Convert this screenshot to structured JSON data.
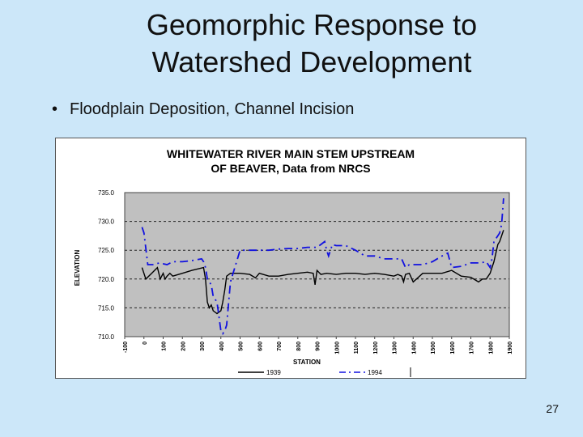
{
  "slide": {
    "title_line1": "Geomorphic Response to",
    "title_line2": "Watershed Development",
    "bullet_symbol": "•",
    "bullet": "Floodplain Deposition, Channel Incision",
    "page_number": "27",
    "background": "#cce7f9"
  },
  "chart_data": {
    "type": "line",
    "title": [
      "WHITEWATER RIVER MAIN STEM UPSTREAM",
      "OF BEAVER,  Data from NRCS"
    ],
    "xlabel": "STATION",
    "ylabel": "ELEVATION",
    "xlim": [
      -100,
      1900
    ],
    "ylim": [
      710,
      735
    ],
    "xticks": [
      -100,
      0,
      100,
      200,
      300,
      400,
      500,
      600,
      700,
      800,
      900,
      1000,
      1100,
      1200,
      1300,
      1400,
      1500,
      1600,
      1700,
      1800,
      1900
    ],
    "yticks": [
      "710.0",
      "715.0",
      "720.0",
      "725.0",
      "730.0",
      "735.0"
    ],
    "grid": "horizontal dashed",
    "plot_background": "#c0c0c0",
    "legend_position": "bottom",
    "series": [
      {
        "name": "1939",
        "style": "solid",
        "color": "#000000",
        "x": [
          -10,
          10,
          40,
          70,
          85,
          100,
          110,
          120,
          135,
          150,
          200,
          250,
          310,
          320,
          330,
          340,
          350,
          360,
          380,
          400,
          410,
          420,
          430,
          450,
          500,
          550,
          580,
          600,
          650,
          700,
          750,
          800,
          850,
          880,
          890,
          900,
          920,
          950,
          1000,
          1050,
          1100,
          1150,
          1200,
          1250,
          1300,
          1320,
          1340,
          1350,
          1360,
          1380,
          1400,
          1450,
          1500,
          1550,
          1600,
          1650,
          1700,
          1740,
          1760,
          1780,
          1800,
          1810,
          1820,
          1830,
          1840,
          1850,
          1855,
          1860,
          1870
        ],
        "y": [
          722,
          720,
          721,
          722,
          720,
          721,
          720,
          720.5,
          721,
          720.5,
          721,
          721.5,
          722,
          720,
          716,
          715,
          715.5,
          714.5,
          714,
          714.5,
          716,
          718,
          720.5,
          721,
          721,
          720.8,
          720.2,
          721,
          720.5,
          720.5,
          720.8,
          721,
          721.2,
          721,
          719,
          721.5,
          720.8,
          721,
          720.8,
          721,
          721,
          720.8,
          721,
          720.8,
          720.5,
          720.8,
          720.5,
          719.5,
          720.8,
          721,
          719.5,
          721,
          721,
          721,
          721.5,
          720.5,
          720.3,
          719.5,
          720,
          720,
          721,
          722,
          723,
          724.5,
          726,
          726.5,
          727,
          727.5,
          728.5
        ]
      },
      {
        "name": "1994",
        "style": "dashed",
        "color": "#1010e0",
        "x": [
          -10,
          0,
          20,
          50,
          80,
          120,
          150,
          200,
          250,
          300,
          310,
          320,
          330,
          350,
          360,
          380,
          400,
          410,
          420,
          430,
          450,
          500,
          550,
          600,
          650,
          700,
          750,
          800,
          850,
          900,
          920,
          940,
          950,
          960,
          980,
          1000,
          1050,
          1100,
          1150,
          1200,
          1250,
          1300,
          1320,
          1340,
          1360,
          1380,
          1400,
          1420,
          1450,
          1500,
          1550,
          1580,
          1600,
          1650,
          1700,
          1750,
          1780,
          1800,
          1810,
          1820,
          1830,
          1840,
          1850,
          1860,
          1870
        ],
        "y": [
          729,
          728,
          722.5,
          722.5,
          722.8,
          722.5,
          723,
          723,
          723.2,
          723.5,
          723,
          722,
          720,
          719,
          717,
          716,
          711,
          710.5,
          711,
          712,
          719.5,
          725,
          725,
          725,
          725,
          725.2,
          725.3,
          725.3,
          725.5,
          725.5,
          726,
          726.5,
          725,
          724,
          726,
          725.8,
          725.8,
          725,
          724,
          724,
          723.5,
          723.5,
          723.5,
          723.5,
          722,
          722.5,
          722.5,
          722.5,
          722.5,
          723,
          724,
          724.5,
          722,
          722.2,
          722.8,
          722.8,
          723,
          722,
          723.5,
          726.5,
          727,
          727.5,
          728,
          729.5,
          734
        ]
      }
    ]
  }
}
